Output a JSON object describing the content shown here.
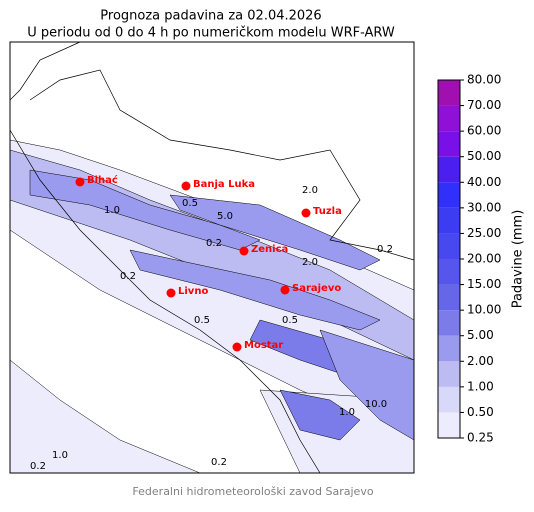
{
  "header": {
    "title": "Prognoza padavina za 02.04.2026",
    "subtitle": "U periodu od 0 do 4 h po numeričkom modelu WRF-ARW"
  },
  "cities": [
    "Bihać",
    "Banja Luka",
    "Tuzla",
    "Zenica",
    "Livno",
    "Sarajevo",
    "Mostar"
  ],
  "contour_labels": [
    "1.0",
    "0.5",
    "5.0",
    "0.2",
    "2.0",
    "0.2",
    "0.2",
    "1.0",
    "0.5",
    "0.5",
    "10.0",
    "1.0",
    "0.2",
    "0.2",
    "2.0"
  ],
  "colorbar": {
    "label": "Padavine (mm)",
    "ticks": [
      {
        "value": 0.25,
        "label": "0.25"
      },
      {
        "value": 0.5,
        "label": "0.50"
      },
      {
        "value": 1,
        "label": "1.00"
      },
      {
        "value": 2,
        "label": "2.00"
      },
      {
        "value": 5,
        "label": "5.00"
      },
      {
        "value": 10,
        "label": "10.00"
      },
      {
        "value": 15,
        "label": "15.00"
      },
      {
        "value": 20,
        "label": "20.00"
      },
      {
        "value": 25,
        "label": "25.00"
      },
      {
        "value": 30,
        "label": "30.00"
      },
      {
        "value": 40,
        "label": "40.00"
      },
      {
        "value": 50,
        "label": "50.00"
      },
      {
        "value": 60,
        "label": "60.00"
      },
      {
        "value": 70,
        "label": "70.00"
      },
      {
        "value": 80,
        "label": "80.00"
      }
    ],
    "colors": [
      "#ececfc",
      "#d8d8f8",
      "#bcbcf2",
      "#9a9aee",
      "#7b7be9",
      "#6666e8",
      "#5656ec",
      "#4848ef",
      "#3c3cf2",
      "#3030fa",
      "#4a1ff0",
      "#7a10e8",
      "#9010d8",
      "#a010b0"
    ]
  },
  "footer": "Federalni hidrometeorološki zavod Sarajevo"
}
